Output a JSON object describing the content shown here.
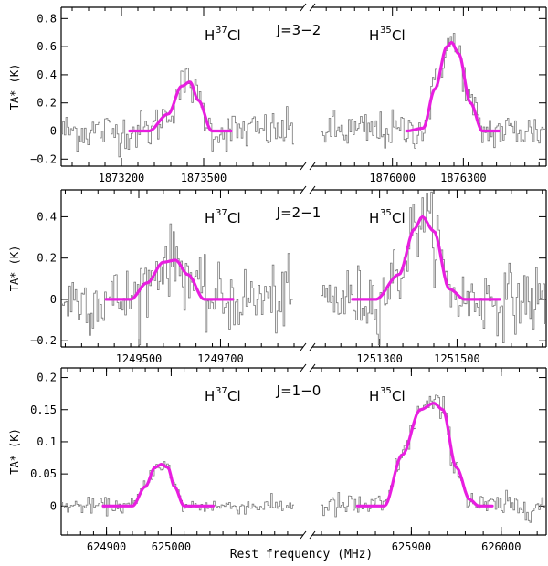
{
  "chart_data": [
    {
      "type": "line",
      "panel": "J=3-2",
      "transition_label": "J=3−2",
      "ylabel": "TA* (K)",
      "ylim": [
        -0.25,
        0.88
      ],
      "yticks": [
        -0.2,
        0,
        0.2,
        0.4,
        0.6,
        0.8
      ],
      "ytick_labels": [
        "−0.2",
        "0",
        "0.2",
        "0.4",
        "0.6",
        "0.8"
      ],
      "left": {
        "species": "H37Cl",
        "xlim": [
          1872980,
          1873830
        ],
        "xticks": [
          1873200,
          1873500
        ],
        "x": [
          1873230,
          1873300,
          1873370,
          1873420,
          1873450,
          1873480,
          1873530,
          1873600
        ],
        "fit": [
          0,
          0.0,
          0.12,
          0.32,
          0.35,
          0.22,
          0.0,
          0
        ],
        "fit_range": [
          1873230,
          1873600
        ],
        "noise": 0.07
      },
      "right": {
        "species": "H35Cl",
        "xlim": [
          1875700,
          1876650
        ],
        "xticks": [
          1876000,
          1876300
        ],
        "x": [
          1876060,
          1876130,
          1876180,
          1876230,
          1876250,
          1876280,
          1876330,
          1876380,
          1876450
        ],
        "fit": [
          0,
          0.02,
          0.3,
          0.6,
          0.63,
          0.55,
          0.2,
          0.0,
          0
        ],
        "fit_range": [
          1876060,
          1876450
        ],
        "noise": 0.07
      }
    },
    {
      "type": "line",
      "panel": "J=2-1",
      "transition_label": "J=2−1",
      "ylabel": "TA* (K)",
      "ylim": [
        -0.23,
        0.53
      ],
      "yticks": [
        -0.2,
        0,
        0.2,
        0.4
      ],
      "ytick_labels": [
        "−0.2",
        "0",
        "0.2",
        "0.4"
      ],
      "left": {
        "species": "H37Cl",
        "xlim": [
          1249310,
          1249880
        ],
        "xticks": [
          1249500,
          1249700
        ],
        "x": [
          1249420,
          1249480,
          1249520,
          1249560,
          1249590,
          1249620,
          1249660,
          1249730
        ],
        "fit": [
          0,
          0.0,
          0.08,
          0.18,
          0.19,
          0.12,
          0.0,
          0
        ],
        "fit_range": [
          1249420,
          1249730
        ],
        "noise": 0.08
      },
      "right": {
        "species": "H35Cl",
        "xlim": [
          1251150,
          1251730
        ],
        "xticks": [
          1251300,
          1251500
        ],
        "x": [
          1251230,
          1251290,
          1251350,
          1251390,
          1251410,
          1251440,
          1251480,
          1251520,
          1251610
        ],
        "fit": [
          0,
          0.0,
          0.12,
          0.34,
          0.4,
          0.33,
          0.05,
          0.0,
          0
        ],
        "fit_range": [
          1251230,
          1251610
        ],
        "noise": 0.08
      }
    },
    {
      "type": "line",
      "panel": "J=1-0",
      "transition_label": "J=1−0",
      "xlabel": "Rest frequency (MHz)",
      "ylabel": "TA* (K)",
      "ylim": [
        -0.045,
        0.215
      ],
      "yticks": [
        0,
        0.05,
        0.1,
        0.15,
        0.2
      ],
      "ytick_labels": [
        "0",
        "0.05",
        "0.1",
        "0.15",
        "0.2"
      ],
      "left": {
        "species": "H37Cl",
        "xlim": [
          624830,
          625190
        ],
        "xticks": [
          624900,
          625000
        ],
        "x": [
          624895,
          624940,
          624960,
          624975,
          624985,
          624995,
          625005,
          625020,
          625065
        ],
        "fit": [
          0,
          0.0,
          0.03,
          0.06,
          0.065,
          0.06,
          0.03,
          0.0,
          0
        ],
        "fit_range": [
          624895,
          625065
        ],
        "noise": 0.006
      },
      "right": {
        "species": "H35Cl",
        "xlim": [
          625800,
          626050
        ],
        "xticks": [
          625900,
          626000
        ],
        "x": [
          625840,
          625870,
          625890,
          625910,
          625925,
          625935,
          625950,
          625965,
          625975,
          625990
        ],
        "fit": [
          0,
          0.0,
          0.08,
          0.15,
          0.16,
          0.15,
          0.06,
          0.01,
          0.0,
          0
        ],
        "fit_range": [
          625840,
          625990
        ],
        "noise": 0.01
      }
    }
  ]
}
